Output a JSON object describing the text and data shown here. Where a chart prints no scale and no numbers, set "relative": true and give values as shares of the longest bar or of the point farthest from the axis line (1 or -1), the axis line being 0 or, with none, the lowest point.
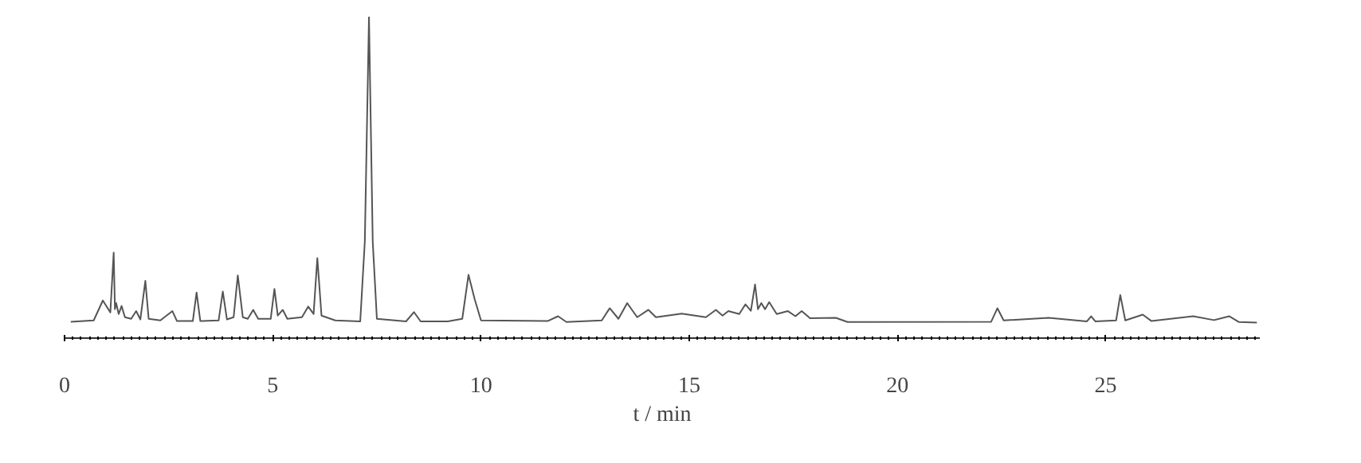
{
  "chart_data": {
    "type": "line",
    "relative": true,
    "xlabel": "t / min",
    "xlim": [
      0,
      28.7
    ],
    "xticks": [
      0,
      5,
      10,
      15,
      20,
      25
    ],
    "grid": false,
    "tick_labels": "x",
    "marker": "none",
    "line_style": "solid",
    "series": [
      {
        "color": "#555555",
        "x": [
          0.15,
          0.7,
          0.92,
          1.1,
          1.18,
          1.21,
          1.24,
          1.3,
          1.37,
          1.45,
          1.6,
          1.72,
          1.82,
          1.94,
          2.02,
          2.3,
          2.59,
          2.7,
          3.08,
          3.17,
          3.26,
          3.7,
          3.8,
          3.9,
          4.06,
          4.16,
          4.28,
          4.4,
          4.53,
          4.65,
          4.95,
          5.04,
          5.12,
          5.24,
          5.35,
          5.7,
          5.85,
          5.98,
          6.07,
          6.17,
          6.5,
          7.1,
          7.21,
          7.31,
          7.4,
          7.5,
          8.2,
          8.39,
          8.55,
          9.2,
          9.55,
          9.7,
          9.85,
          10.0,
          11.6,
          11.85,
          12.05,
          12.9,
          13.09,
          13.3,
          13.51,
          13.75,
          14.02,
          14.2,
          14.82,
          15.4,
          15.64,
          15.8,
          15.94,
          16.2,
          16.35,
          16.48,
          16.58,
          16.65,
          16.73,
          16.82,
          16.92,
          17.1,
          17.37,
          17.55,
          17.7,
          17.9,
          18.52,
          18.8,
          22.25,
          22.4,
          22.55,
          23.63,
          24.55,
          24.65,
          24.75,
          25.25,
          25.35,
          25.47,
          25.89,
          26.1,
          27.1,
          27.6,
          27.97,
          28.2,
          28.63
        ],
        "values": [
          0.051,
          0.055,
          0.117,
          0.08,
          0.266,
          0.09,
          0.109,
          0.075,
          0.1,
          0.065,
          0.06,
          0.084,
          0.058,
          0.178,
          0.06,
          0.055,
          0.084,
          0.053,
          0.053,
          0.142,
          0.053,
          0.055,
          0.145,
          0.058,
          0.065,
          0.195,
          0.065,
          0.06,
          0.088,
          0.06,
          0.06,
          0.153,
          0.07,
          0.088,
          0.06,
          0.065,
          0.098,
          0.075,
          0.249,
          0.07,
          0.055,
          0.052,
          0.3,
          1.0,
          0.3,
          0.06,
          0.052,
          0.081,
          0.052,
          0.052,
          0.06,
          0.197,
          0.12,
          0.055,
          0.053,
          0.068,
          0.05,
          0.055,
          0.093,
          0.06,
          0.109,
          0.065,
          0.088,
          0.065,
          0.076,
          0.065,
          0.088,
          0.07,
          0.084,
          0.075,
          0.105,
          0.085,
          0.167,
          0.09,
          0.109,
          0.09,
          0.112,
          0.075,
          0.084,
          0.068,
          0.084,
          0.062,
          0.063,
          0.05,
          0.051,
          0.093,
          0.055,
          0.063,
          0.052,
          0.068,
          0.052,
          0.055,
          0.134,
          0.055,
          0.073,
          0.053,
          0.068,
          0.056,
          0.068,
          0.05,
          0.048
        ]
      }
    ]
  }
}
